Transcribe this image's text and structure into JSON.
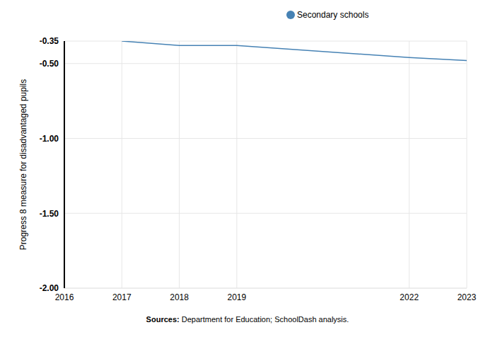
{
  "chart_data": {
    "type": "line",
    "source": "Sources: Department for Education; SchoolDash analysis.",
    "y_label": "Progress 8 measure for disadvantaged pupils",
    "x": [
      2017,
      2018,
      2019,
      2022,
      2023
    ],
    "series": [
      {
        "name": "Secondary schools",
        "color": "#4682b4",
        "values": [
          -0.35,
          -0.38,
          -0.38,
          -0.46,
          -0.48
        ]
      }
    ],
    "xlim": [
      2016,
      2023
    ],
    "xticks": [
      2016,
      2017,
      2018,
      2019,
      2022,
      2023
    ],
    "ylim": [
      -2,
      -0.35
    ],
    "yticks": [
      {
        "value": -2,
        "label": "-2.00"
      },
      {
        "value": -1.5,
        "label": "-1.50"
      },
      {
        "value": -1,
        "label": "-1.00"
      },
      {
        "value": -0.5,
        "label": "-0.50"
      },
      -0.35
    ],
    "grid": true,
    "legend": "top",
    "marker": "none"
  }
}
